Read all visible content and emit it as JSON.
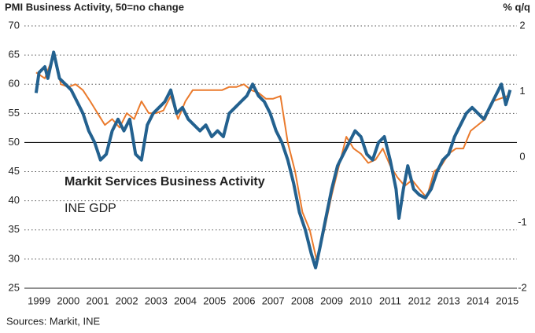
{
  "chart_data": {
    "type": "line",
    "title": "PMI Business Activity, 50=no change",
    "y2_label": "% q/q",
    "source": "Sources: Markit, INE",
    "xlim": [
      1999,
      2015.83
    ],
    "xticks": [
      {
        "value": 1999.5,
        "label": "1999"
      },
      {
        "value": 2000.5,
        "label": "2000"
      },
      {
        "value": 2001.5,
        "label": "2001"
      },
      {
        "value": 2002.5,
        "label": "2002"
      },
      {
        "value": 2003.5,
        "label": "2003"
      },
      {
        "value": 2004.5,
        "label": "2004"
      },
      {
        "value": 2005.5,
        "label": "2005"
      },
      {
        "value": 2006.5,
        "label": "2006"
      },
      {
        "value": 2007.5,
        "label": "2007"
      },
      {
        "value": 2008.5,
        "label": "2008"
      },
      {
        "value": 2009.5,
        "label": "2009"
      },
      {
        "value": 2010.5,
        "label": "2010"
      },
      {
        "value": 2011.5,
        "label": "2011"
      },
      {
        "value": 2012.5,
        "label": "2012"
      },
      {
        "value": 2013.5,
        "label": "2013"
      },
      {
        "value": 2014.5,
        "label": "2014"
      },
      {
        "value": 2015.5,
        "label": "2015"
      }
    ],
    "ylim": [
      25,
      70
    ],
    "yticks": [
      25,
      30,
      35,
      40,
      45,
      50,
      55,
      60,
      65,
      70
    ],
    "y2lim": [
      -2,
      2
    ],
    "y2ticks": [
      -2,
      -1,
      0,
      1,
      2
    ],
    "grid": true,
    "hline": 50,
    "series": [
      {
        "name": "Markit Services Business Activity",
        "color": "#23618f",
        "axis": "y",
        "x": [
          1999.4,
          1999.5,
          1999.7,
          1999.8,
          2000.0,
          2000.2,
          2000.4,
          2000.6,
          2000.8,
          2001.0,
          2001.2,
          2001.4,
          2001.6,
          2001.8,
          2002.0,
          2002.2,
          2002.4,
          2002.6,
          2002.8,
          2003.0,
          2003.2,
          2003.4,
          2003.6,
          2003.8,
          2004.0,
          2004.2,
          2004.4,
          2004.6,
          2004.8,
          2005.0,
          2005.2,
          2005.4,
          2005.6,
          2005.8,
          2006.0,
          2006.2,
          2006.4,
          2006.6,
          2006.8,
          2007.0,
          2007.2,
          2007.4,
          2007.6,
          2007.8,
          2008.0,
          2008.2,
          2008.4,
          2008.6,
          2008.8,
          2008.95,
          2009.1,
          2009.3,
          2009.5,
          2009.7,
          2009.9,
          2010.1,
          2010.3,
          2010.5,
          2010.7,
          2010.9,
          2011.1,
          2011.3,
          2011.5,
          2011.7,
          2011.8,
          2011.95,
          2012.1,
          2012.3,
          2012.5,
          2012.7,
          2012.9,
          2013.1,
          2013.3,
          2013.5,
          2013.7,
          2013.9,
          2014.1,
          2014.3,
          2014.5,
          2014.7,
          2014.9,
          2015.1,
          2015.3,
          2015.45,
          2015.6
        ],
        "values": [
          58.5,
          62,
          63,
          61,
          65.5,
          61,
          60,
          59,
          57,
          55,
          52,
          50,
          47,
          48,
          52,
          54,
          52,
          54,
          48,
          47,
          53,
          55,
          56,
          57,
          59,
          55,
          56,
          54,
          53,
          52,
          53,
          51,
          52,
          51,
          55,
          56,
          57,
          58,
          60,
          58,
          57,
          55,
          52,
          50,
          47,
          43,
          38,
          35,
          31,
          28.5,
          32,
          37,
          42,
          46,
          48,
          50,
          52,
          51,
          48,
          47,
          50,
          51,
          47,
          42,
          37,
          42,
          46,
          42,
          41,
          40.5,
          42,
          45,
          47,
          48,
          51,
          53,
          55,
          56,
          55,
          54,
          56,
          58,
          60,
          56.5,
          59
        ]
      },
      {
        "name": "INE GDP",
        "color": "#ea7a2c",
        "axis": "y2",
        "x": [
          1999.4,
          1999.7,
          2000.0,
          2000.25,
          2000.5,
          2000.75,
          2001.0,
          2001.25,
          2001.5,
          2001.75,
          2002.0,
          2002.25,
          2002.5,
          2002.75,
          2003.0,
          2003.25,
          2003.5,
          2003.75,
          2004.0,
          2004.25,
          2004.5,
          2004.75,
          2005.0,
          2005.25,
          2005.5,
          2005.75,
          2006.0,
          2006.25,
          2006.5,
          2006.75,
          2007.0,
          2007.25,
          2007.5,
          2007.75,
          2008.0,
          2008.25,
          2008.5,
          2008.75,
          2009.0,
          2009.25,
          2009.5,
          2009.75,
          2010.0,
          2010.25,
          2010.5,
          2010.75,
          2011.0,
          2011.25,
          2011.5,
          2011.75,
          2012.0,
          2012.25,
          2012.5,
          2012.75,
          2013.0,
          2013.25,
          2013.5,
          2013.75,
          2014.0,
          2014.25,
          2014.5,
          2014.75,
          2015.0,
          2015.25,
          2015.5
        ],
        "values": [
          1.29,
          1.2,
          1.56,
          1.11,
          1.07,
          1.11,
          1.02,
          0.85,
          0.67,
          0.49,
          0.58,
          0.45,
          0.67,
          0.58,
          0.85,
          0.67,
          0.67,
          0.71,
          0.93,
          0.58,
          0.85,
          1.02,
          1.02,
          1.02,
          1.02,
          1.02,
          1.07,
          1.07,
          1.11,
          1.02,
          0.98,
          0.89,
          0.89,
          0.93,
          0.22,
          -0.22,
          -0.84,
          -1.11,
          -1.6,
          -1.11,
          -0.58,
          -0.13,
          0.31,
          0.13,
          0.05,
          -0.09,
          -0.04,
          0.13,
          -0.13,
          -0.31,
          -0.44,
          -0.35,
          -0.49,
          -0.62,
          -0.22,
          -0.13,
          0.05,
          0.13,
          0.13,
          0.4,
          0.49,
          0.58,
          0.85,
          0.89,
          0.93
        ]
      }
    ]
  }
}
